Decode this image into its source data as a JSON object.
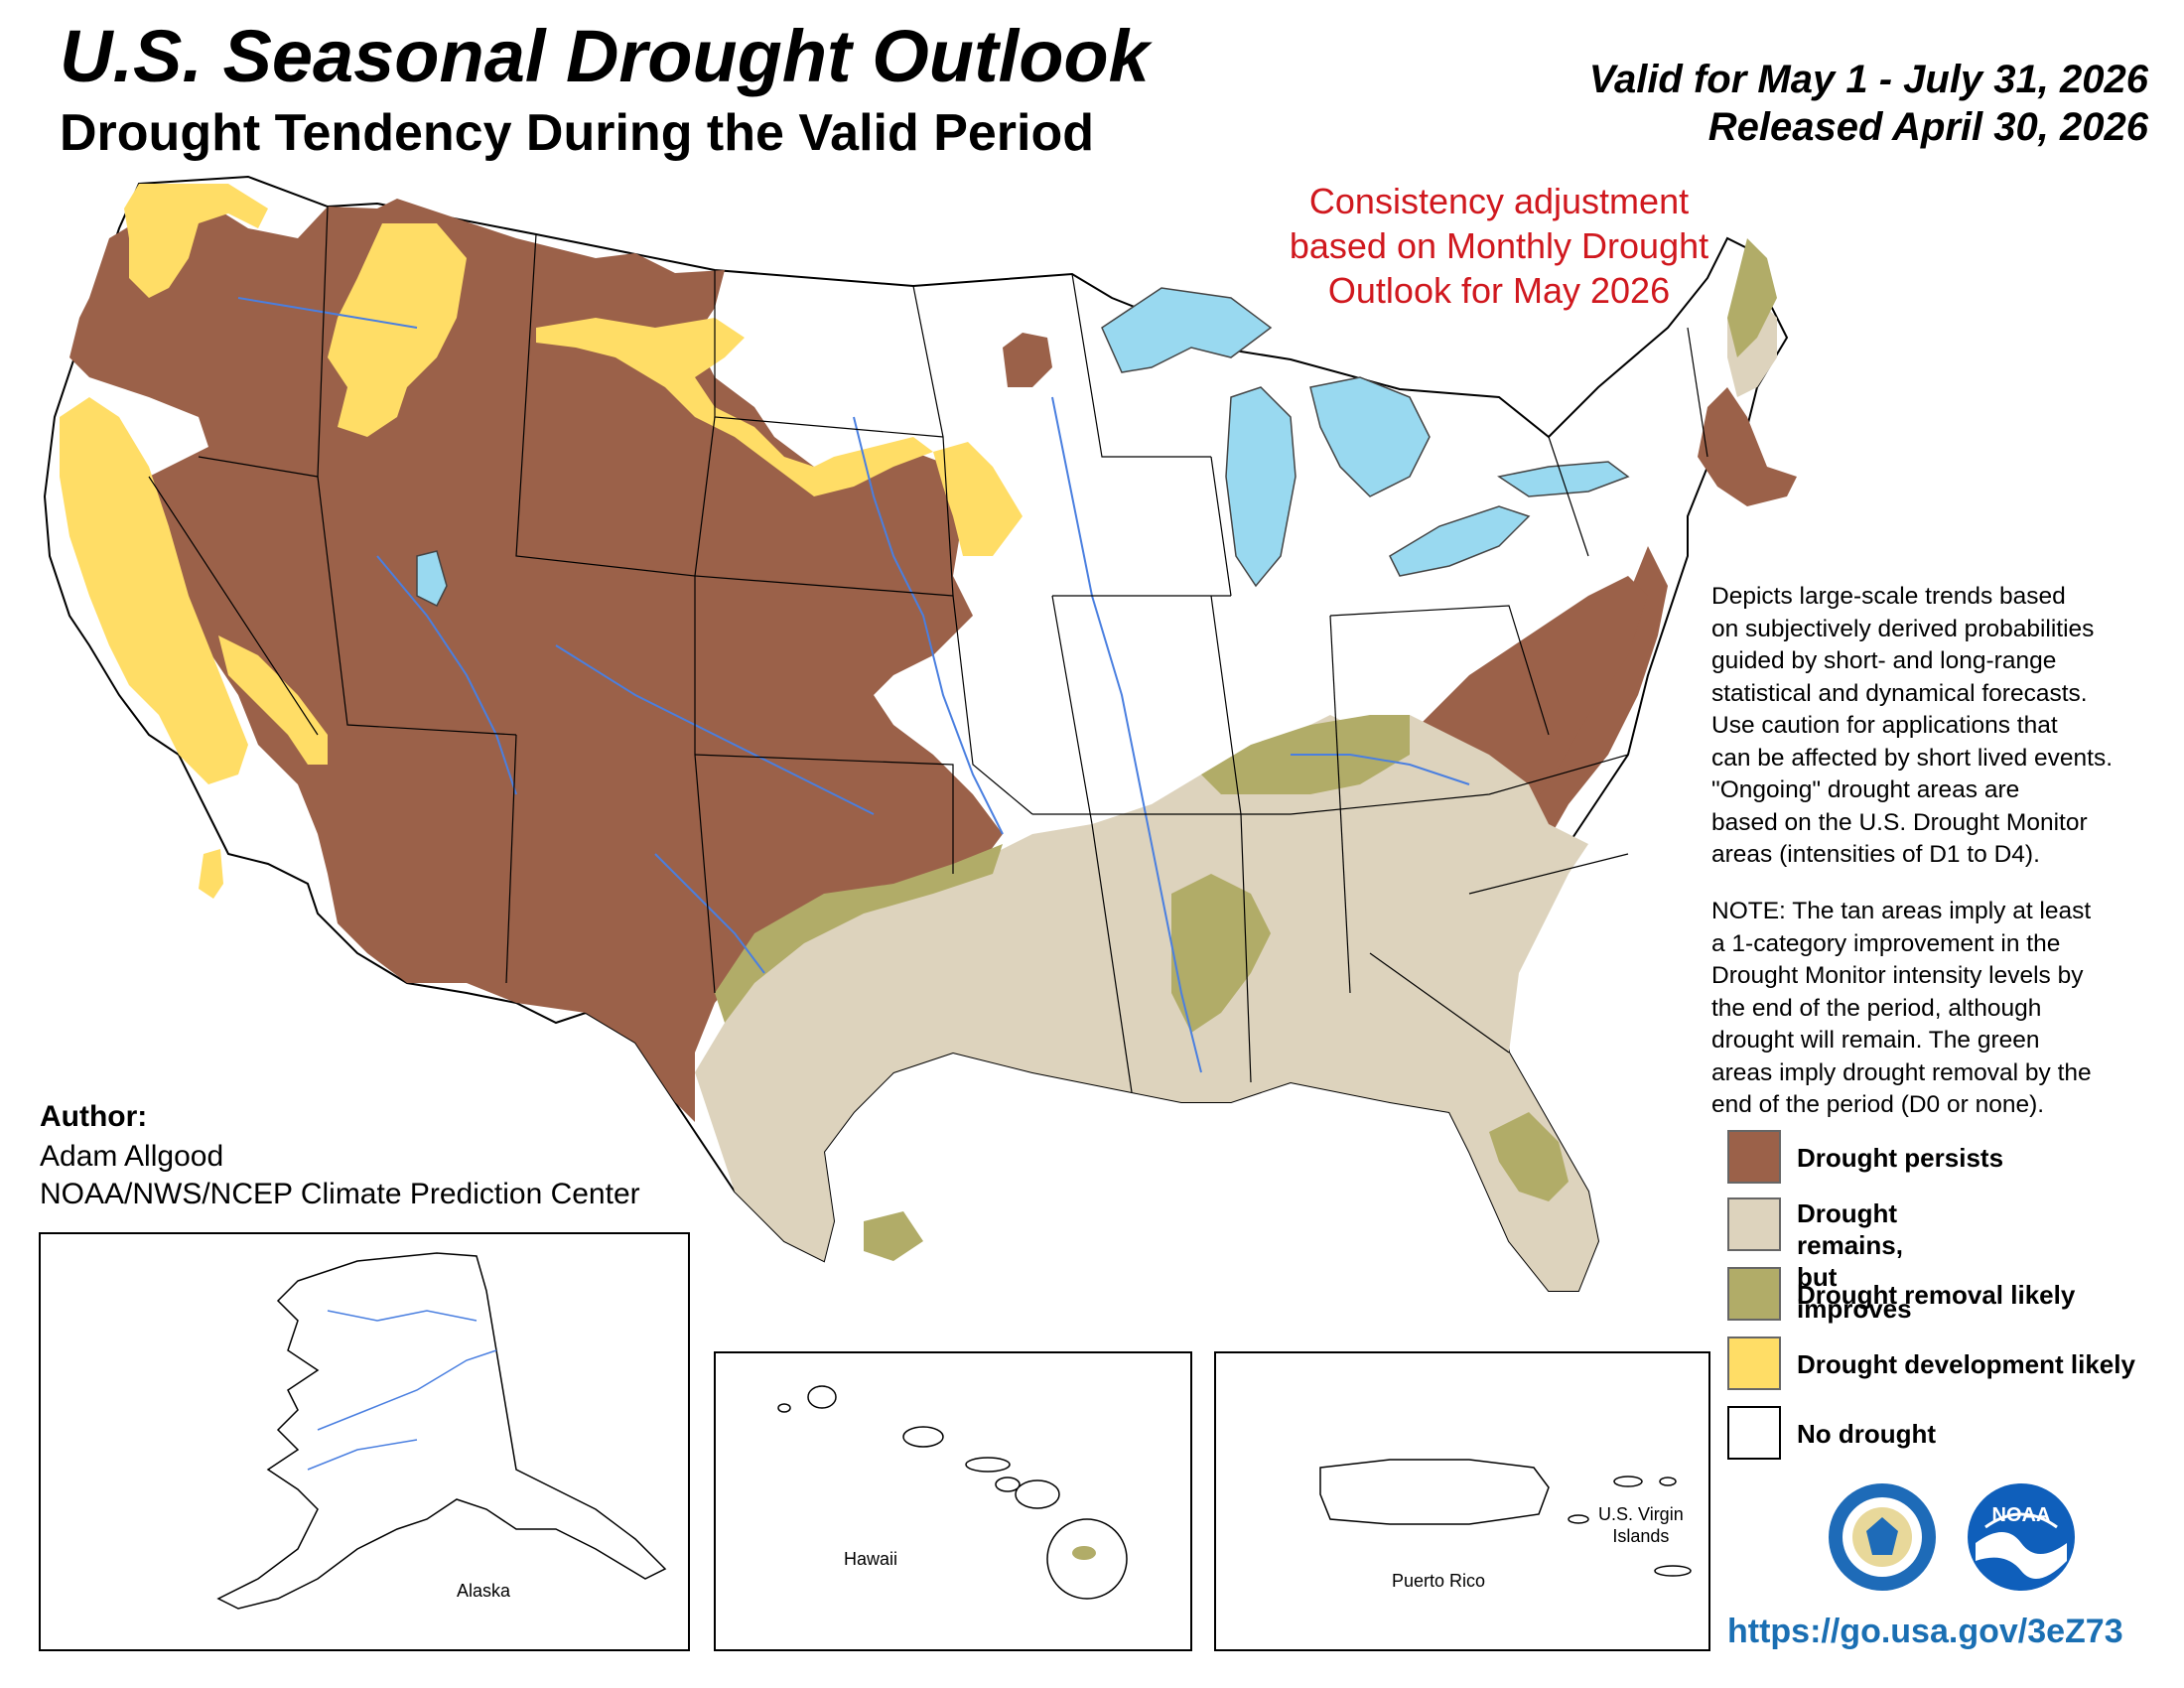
{
  "header": {
    "title": "U.S. Seasonal Drought Outlook",
    "subtitle": "Drought Tendency During the Valid Period",
    "valid": "Valid for May 1 - July 31, 2026",
    "released": "Released April 30, 2026"
  },
  "adjustment_note": "Consistency adjustment based on Monthly Drought Outlook for May 2026",
  "description": {
    "paragraph1": "Depicts large-scale trends based\non subjectively derived probabilities\nguided by short- and long-range\nstatistical and dynamical forecasts.\nUse caution for applications that\ncan be affected by short lived events.\n\"Ongoing\" drought areas are\nbased on the U.S. Drought Monitor\nareas (intensities of D1 to D4).",
    "paragraph2": "NOTE: The tan areas imply at least\na 1-category improvement in the\nDrought Monitor intensity levels by\nthe end of the period, although\ndrought will remain. The green\nareas imply drought removal by the\nend of the period (D0 or none)."
  },
  "legend": [
    {
      "label": "Drought persists",
      "color": "#9b6149"
    },
    {
      "label": "Drought remains,\nbut improves",
      "color": "#ddd3bd"
    },
    {
      "label": "Drought removal likely",
      "color": "#b1ac68"
    },
    {
      "label": "Drought development likely",
      "color": "#ffdd66"
    },
    {
      "label": "No drought",
      "color": "#ffffff"
    }
  ],
  "author": {
    "heading": "Author:",
    "name": "Adam Allgood",
    "organization": "NOAA/NWS/NCEP Climate Prediction Center"
  },
  "insets": {
    "alaska": "Alaska",
    "hawaii": "Hawaii",
    "puerto_rico": "Puerto Rico",
    "usvi": "U.S. Virgin\nIslands"
  },
  "logos": {
    "commerce": "commerce-seal-icon",
    "noaa": "NOAA"
  },
  "url": "https://go.usa.gov/3eZ73",
  "colors": {
    "persists": "#9b6149",
    "improves": "#ddd3bd",
    "removal": "#b1ac68",
    "development": "#ffdd66",
    "water": "#99d9f0",
    "rivers": "#4a7fe0",
    "note_red": "#d0181e",
    "url_blue": "#1a6fb3"
  }
}
